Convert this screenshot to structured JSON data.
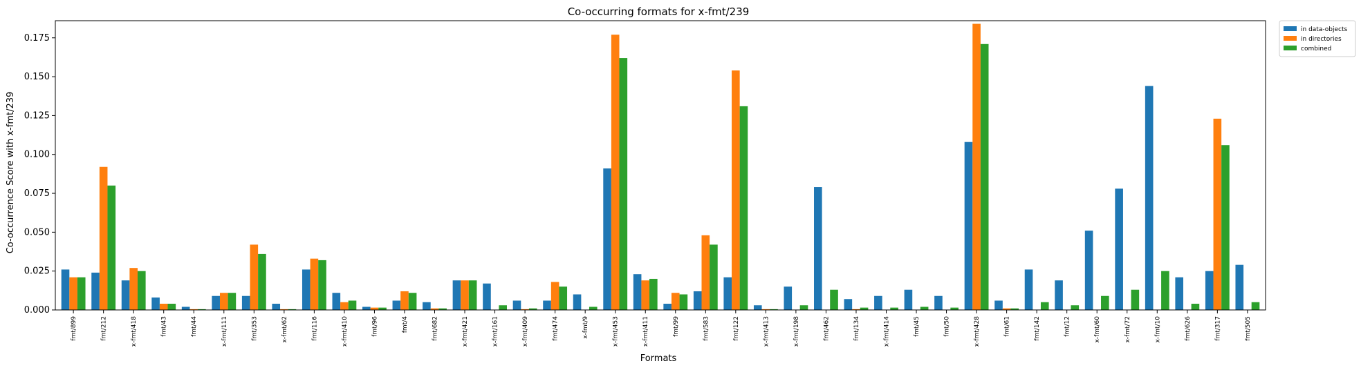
{
  "chart_data": {
    "type": "bar",
    "title": "Co-occurring formats for x-fmt/239",
    "xlabel": "Formats",
    "ylabel": "Co-occurrence Score with x-fmt/239",
    "ylim": [
      0,
      0.186
    ],
    "yticks": [
      "0.000",
      "0.025",
      "0.050",
      "0.075",
      "0.100",
      "0.125",
      "0.150",
      "0.175"
    ],
    "legend_position": "top-right (outside plot)",
    "grid": false,
    "categories": [
      "fmt/899",
      "fmt/212",
      "x-fmt/418",
      "fmt/43",
      "fmt/44",
      "x-fmt/111",
      "fmt/353",
      "x-fmt/62",
      "fmt/116",
      "x-fmt/410",
      "fmt/96",
      "fmt/4",
      "fmt/682",
      "x-fmt/421",
      "x-fmt/161",
      "x-fmt/409",
      "fmt/474",
      "x-fmt/9",
      "x-fmt/453",
      "x-fmt/411",
      "fmt/99",
      "fmt/583",
      "fmt/122",
      "x-fmt/413",
      "x-fmt/198",
      "fmt/462",
      "fmt/134",
      "x-fmt/414",
      "fmt/45",
      "fmt/50",
      "x-fmt/428",
      "fmt/61",
      "fmt/142",
      "fmt/12",
      "x-fmt/60",
      "x-fmt/72",
      "x-fmt/10",
      "fmt/626",
      "fmt/317",
      "fmt/505"
    ],
    "series": [
      {
        "name": "in data-objects",
        "color": "#1f77b4",
        "values": [
          0.026,
          0.024,
          0.019,
          0.008,
          0.002,
          0.009,
          0.009,
          0.004,
          0.026,
          0.011,
          0.002,
          0.006,
          0.005,
          0.019,
          0.017,
          0.006,
          0.006,
          0.01,
          0.091,
          0.023,
          0.004,
          0.012,
          0.021,
          0.003,
          0.015,
          0.079,
          0.007,
          0.009,
          0.013,
          0.009,
          0.108,
          0.006,
          0.026,
          0.019,
          0.051,
          0.078,
          0.144,
          0.021,
          0.025,
          0.029
        ]
      },
      {
        "name": "in directories",
        "color": "#ff7f0e",
        "values": [
          0.021,
          0.092,
          0.027,
          0.004,
          0.0005,
          0.011,
          0.042,
          0.0005,
          0.033,
          0.005,
          0.0015,
          0.012,
          0.001,
          0.019,
          0.0,
          0.0005,
          0.018,
          0.0,
          0.177,
          0.019,
          0.011,
          0.048,
          0.154,
          0.0005,
          0.0,
          0.0,
          0.0005,
          0.0,
          0.0,
          0.0,
          0.184,
          0.001,
          0.0,
          0.0,
          0.0,
          0.0,
          0.0,
          0.0,
          0.123,
          0.0
        ]
      },
      {
        "name": "combined",
        "color": "#2ca02c",
        "values": [
          0.021,
          0.08,
          0.025,
          0.004,
          0.0005,
          0.011,
          0.036,
          0.0005,
          0.032,
          0.006,
          0.0015,
          0.011,
          0.001,
          0.019,
          0.003,
          0.001,
          0.015,
          0.002,
          0.162,
          0.02,
          0.01,
          0.042,
          0.131,
          0.0005,
          0.003,
          0.013,
          0.0015,
          0.0015,
          0.002,
          0.0015,
          0.171,
          0.001,
          0.005,
          0.003,
          0.009,
          0.013,
          0.025,
          0.004,
          0.106,
          0.005
        ]
      }
    ]
  }
}
